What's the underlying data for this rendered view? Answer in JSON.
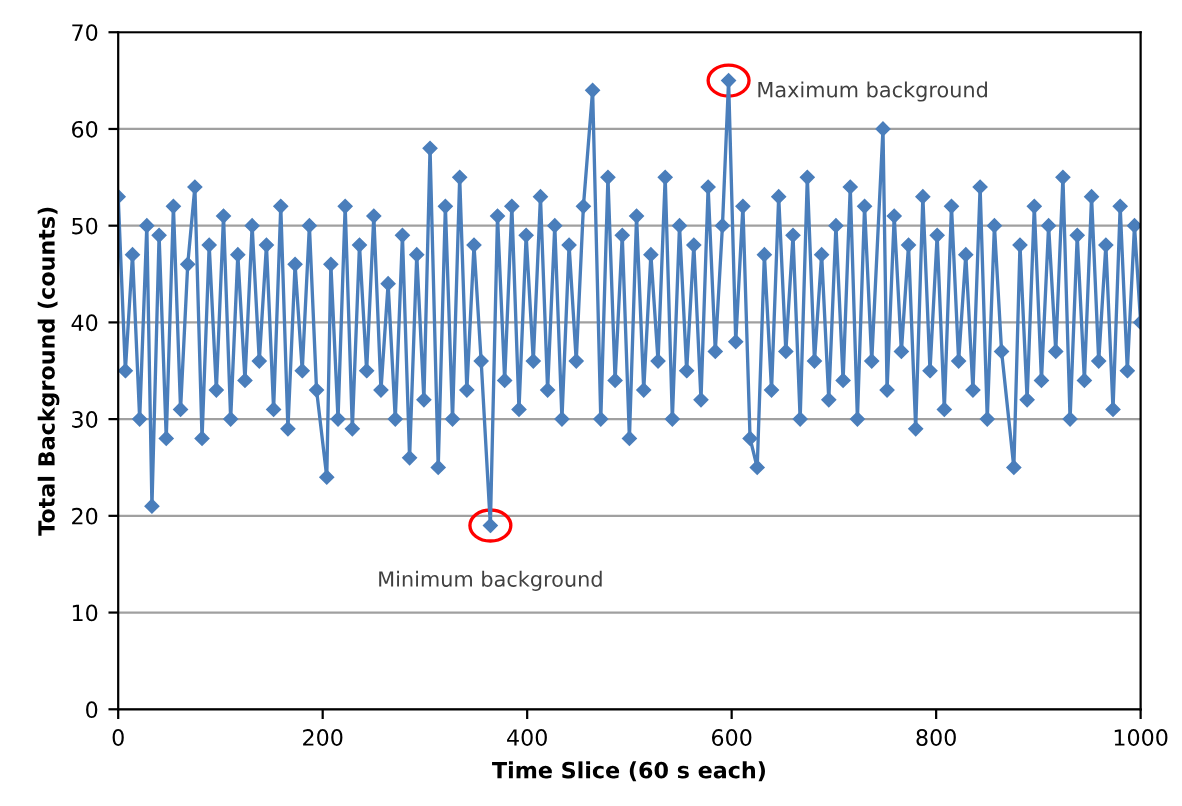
{
  "chart_data": {
    "type": "line",
    "xlabel": "Time Slice (60 s each)",
    "ylabel": "Total Background (counts)",
    "x": [
      0,
      7,
      14,
      21,
      28,
      33,
      40,
      47,
      54,
      61,
      68,
      75,
      82,
      89,
      96,
      103,
      110,
      117,
      124,
      131,
      138,
      145,
      152,
      159,
      166,
      173,
      180,
      187,
      194,
      204,
      208,
      215,
      222,
      229,
      236,
      243,
      250,
      257,
      264,
      271,
      278,
      285,
      292,
      299,
      305,
      313,
      320,
      327,
      334,
      341,
      348,
      355,
      364,
      371,
      378,
      385,
      392,
      399,
      406,
      413,
      420,
      427,
      434,
      441,
      448,
      455,
      464,
      472,
      479,
      486,
      493,
      500,
      507,
      514,
      521,
      528,
      535,
      542,
      549,
      556,
      563,
      570,
      577,
      584,
      591,
      597,
      604,
      611,
      618,
      625,
      632,
      639,
      646,
      653,
      660,
      667,
      674,
      681,
      688,
      695,
      702,
      709,
      716,
      723,
      730,
      737,
      748,
      752,
      759,
      766,
      773,
      780,
      787,
      794,
      801,
      808,
      815,
      822,
      829,
      836,
      843,
      850,
      857,
      864,
      876,
      882,
      889,
      896,
      903,
      910,
      917,
      924,
      931,
      938,
      945,
      952,
      959,
      966,
      973,
      980,
      987,
      994,
      1000
    ],
    "series": [
      {
        "color": "#4a7ebb",
        "values": [
          53,
          35,
          47,
          30,
          50,
          21,
          49,
          28,
          52,
          31,
          46,
          54,
          28,
          48,
          33,
          51,
          30,
          47,
          34,
          50,
          36,
          48,
          31,
          52,
          29,
          46,
          35,
          50,
          33,
          24,
          46,
          30,
          52,
          29,
          48,
          35,
          51,
          33,
          44,
          30,
          49,
          26,
          47,
          32,
          58,
          25,
          52,
          30,
          55,
          33,
          48,
          36,
          19,
          51,
          34,
          52,
          31,
          49,
          36,
          53,
          33,
          50,
          30,
          48,
          36,
          52,
          64,
          30,
          55,
          34,
          49,
          28,
          51,
          33,
          47,
          36,
          55,
          30,
          50,
          35,
          48,
          32,
          54,
          37,
          50,
          65,
          38,
          52,
          28,
          25,
          47,
          33,
          53,
          37,
          49,
          30,
          55,
          36,
          47,
          32,
          50,
          34,
          54,
          30,
          52,
          36,
          60,
          33,
          51,
          37,
          48,
          29,
          53,
          35,
          49,
          31,
          52,
          36,
          47,
          33,
          54,
          30,
          50,
          37,
          25,
          48,
          32,
          52,
          34,
          50,
          37,
          55,
          30,
          49,
          34,
          53,
          36,
          48,
          31,
          52,
          35,
          50,
          40
        ]
      }
    ],
    "xlim": [
      0,
      1000
    ],
    "xticks": [
      0,
      200,
      400,
      600,
      800,
      1000
    ],
    "ylim": [
      0,
      70
    ],
    "yticks": [
      0,
      10,
      20,
      30,
      40,
      50,
      60,
      70
    ],
    "grid": "y",
    "marker": "diamond",
    "line_style": "solid",
    "annotations": [
      {
        "text": "Minimum background",
        "x": 364,
        "y": 19
      },
      {
        "text": "Maximum background",
        "x": 597,
        "y": 65
      }
    ]
  }
}
